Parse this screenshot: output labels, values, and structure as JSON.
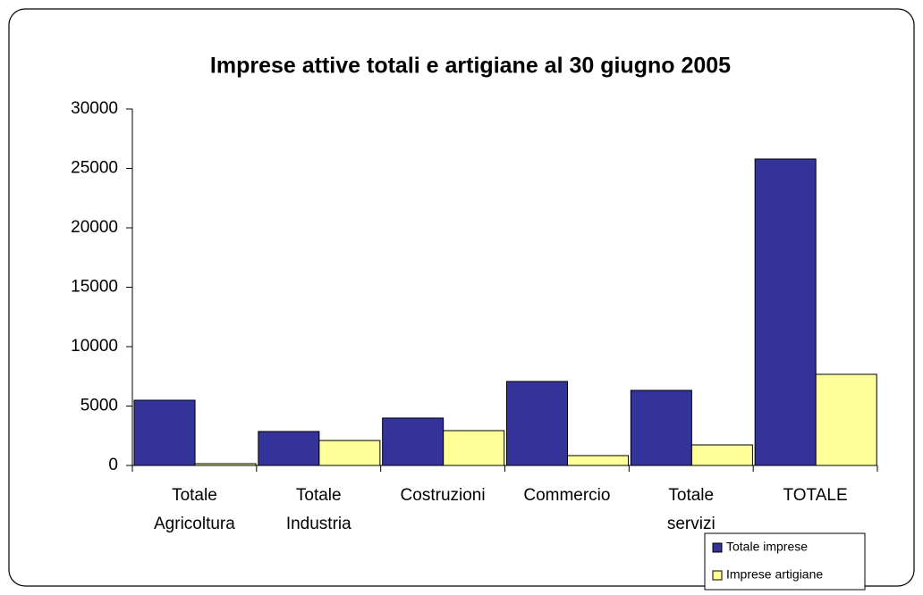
{
  "chart_data": {
    "type": "bar",
    "title": "Imprese attive totali e artigiane al 30 giugno 2005",
    "categories": [
      "Totale Agricoltura",
      "Totale Industria",
      "Costruzioni",
      "Commercio",
      "Totale servizi",
      "TOTALE"
    ],
    "series": [
      {
        "name": "Totale imprese",
        "color": "#333399",
        "values": [
          5490,
          2860,
          3990,
          7070,
          6320,
          25790
        ]
      },
      {
        "name": "Imprese artigiane",
        "color": "#ffff99",
        "values": [
          150,
          2100,
          2930,
          830,
          1730,
          7670
        ]
      }
    ],
    "ylim": [
      0,
      30000
    ],
    "yticks": [
      0,
      5000,
      10000,
      15000,
      20000,
      25000,
      30000
    ],
    "grid": false,
    "legend": "lower right"
  }
}
